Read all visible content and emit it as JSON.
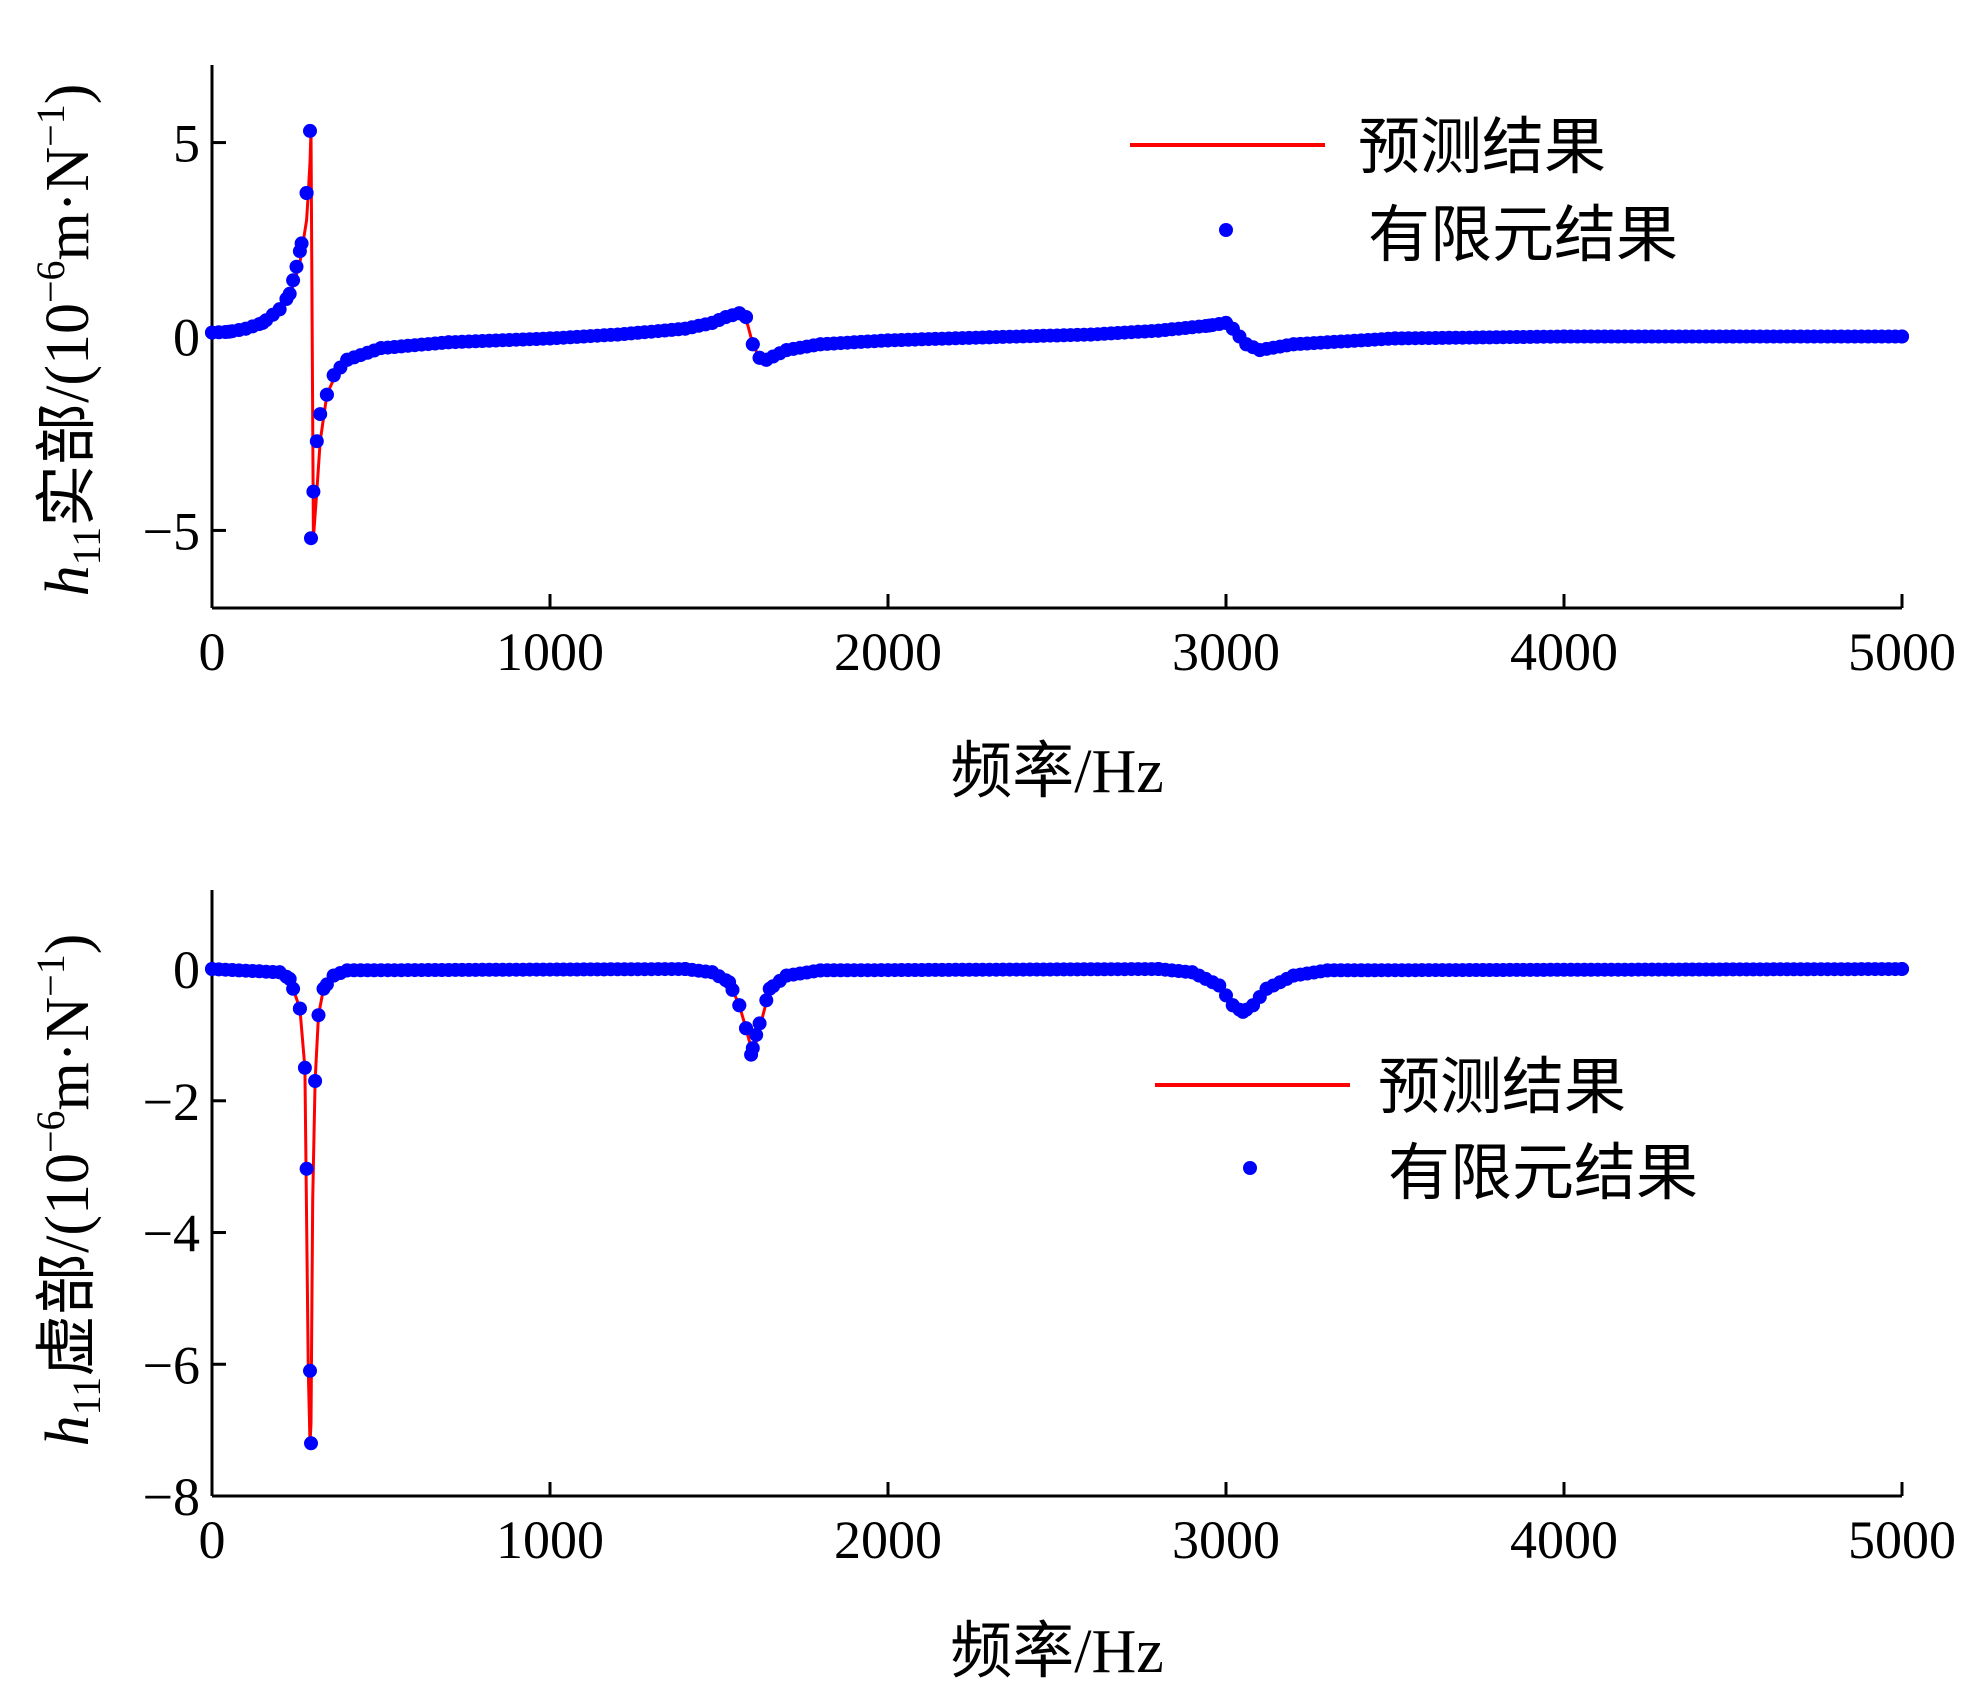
{
  "colors": {
    "predicted": "#ff0000",
    "fem": "#0000ff",
    "axis": "#000000"
  },
  "chart_data": [
    {
      "type": "line",
      "title": "",
      "xlabel": "频率/Hz",
      "ylabel_var": "h",
      "ylabel_sub": "11",
      "ylabel_text": "实部/(10",
      "ylabel_exp1": "−6",
      "ylabel_mid": "m·N",
      "ylabel_exp2": "−1",
      "ylabel_close": ")",
      "xlim": [
        0,
        5000
      ],
      "ylim": [
        -7,
        7
      ],
      "xticks": [
        0,
        1000,
        2000,
        3000,
        4000,
        5000
      ],
      "xtick_labels": [
        "0",
        "1000",
        "2000",
        "3000",
        "4000",
        "5000"
      ],
      "yticks": [
        5,
        0,
        -5
      ],
      "ytick_labels": [
        "5",
        "0",
        "−5"
      ],
      "legend_position": "top-right",
      "series": [
        {
          "name": "预测结果",
          "style": "line",
          "x": [
            0,
            50,
            100,
            150,
            200,
            240,
            260,
            280,
            285,
            290,
            293,
            300,
            310,
            320,
            340,
            370,
            400,
            450,
            500,
            600,
            800,
            1000,
            1200,
            1400,
            1480,
            1520,
            1550,
            1570,
            1585,
            1600,
            1620,
            1640,
            1700,
            1800,
            2000,
            2300,
            2600,
            2800,
            2950,
            3000,
            3020,
            3060,
            3100,
            3200,
            3500,
            4000,
            4500,
            5000
          ],
          "y": [
            0.1,
            0.12,
            0.2,
            0.35,
            0.7,
            1.3,
            1.9,
            3.0,
            3.7,
            4.5,
            5.3,
            -5.2,
            -4.0,
            -2.7,
            -1.5,
            -0.9,
            -0.6,
            -0.4,
            -0.3,
            -0.2,
            -0.1,
            -0.05,
            0.05,
            0.2,
            0.35,
            0.5,
            0.6,
            0.55,
            0.3,
            -0.2,
            -0.55,
            -0.6,
            -0.35,
            -0.2,
            -0.1,
            -0.02,
            0.05,
            0.15,
            0.28,
            0.35,
            0.2,
            -0.2,
            -0.35,
            -0.2,
            -0.05,
            0,
            0,
            0
          ]
        },
        {
          "name": "有限元结果",
          "style": "markers",
          "x": [
            0,
            50,
            100,
            150,
            200,
            230,
            250,
            265,
            280,
            290,
            293,
            300,
            310,
            320,
            340,
            360,
            400,
            500,
            700,
            1000,
            1200,
            1400,
            1480,
            1520,
            1560,
            1580,
            1600,
            1620,
            1640,
            1700,
            1800,
            2000,
            2300,
            2600,
            2800,
            2950,
            3000,
            3020,
            3060,
            3100,
            3200,
            3500,
            4000,
            4500,
            5000
          ],
          "y": [
            0.1,
            0.12,
            0.2,
            0.35,
            0.7,
            1.1,
            1.8,
            2.4,
            3.7,
            5.3,
            -5.2,
            -4.0,
            -2.7,
            -2.0,
            -1.5,
            -1.0,
            -0.6,
            -0.3,
            -0.15,
            -0.05,
            0.05,
            0.2,
            0.35,
            0.5,
            0.6,
            0.5,
            -0.2,
            -0.55,
            -0.6,
            -0.35,
            -0.2,
            -0.1,
            -0.02,
            0.05,
            0.15,
            0.28,
            0.35,
            0.2,
            -0.2,
            -0.35,
            -0.2,
            -0.05,
            0,
            0,
            0
          ]
        }
      ]
    },
    {
      "type": "line",
      "title": "",
      "xlabel": "频率/Hz",
      "ylabel_var": "h",
      "ylabel_sub": "11",
      "ylabel_text": "虚部/(10",
      "ylabel_exp1": "−6",
      "ylabel_mid": "m·N",
      "ylabel_exp2": "−1",
      "ylabel_close": ")",
      "xlim": [
        0,
        5000
      ],
      "ylim": [
        -8,
        1.2
      ],
      "xticks": [
        0,
        1000,
        2000,
        3000,
        4000,
        5000
      ],
      "xtick_labels": [
        "0",
        "1000",
        "2000",
        "3000",
        "4000",
        "5000"
      ],
      "yticks": [
        0,
        -2,
        -4,
        -6,
        -8
      ],
      "ytick_labels": [
        "0",
        "−2",
        "−4",
        "−6",
        "−8"
      ],
      "legend_position": "center-right",
      "series": [
        {
          "name": "预测结果",
          "style": "line",
          "x": [
            0,
            200,
            230,
            260,
            275,
            285,
            290,
            293,
            298,
            305,
            315,
            330,
            360,
            400,
            1400,
            1480,
            1530,
            1560,
            1580,
            1600,
            1620,
            1650,
            1700,
            1800,
            2800,
            2900,
            2980,
            3020,
            3050,
            3080,
            3120,
            3200,
            3300,
            5000
          ],
          "y": [
            0,
            -0.05,
            -0.15,
            -0.6,
            -1.5,
            -6.1,
            -7.2,
            -6.9,
            -3.5,
            -1.7,
            -0.7,
            -0.3,
            -0.1,
            -0.02,
            0,
            -0.05,
            -0.2,
            -0.55,
            -0.9,
            -1.3,
            -0.9,
            -0.3,
            -0.1,
            -0.02,
            0,
            -0.05,
            -0.25,
            -0.55,
            -0.65,
            -0.55,
            -0.3,
            -0.1,
            -0.02,
            0
          ]
        },
        {
          "name": "有限元结果",
          "style": "markers",
          "x": [
            0,
            200,
            230,
            260,
            275,
            290,
            293,
            305,
            315,
            330,
            360,
            400,
            1400,
            1480,
            1530,
            1560,
            1580,
            1595,
            1610,
            1650,
            1700,
            1800,
            2800,
            2900,
            2980,
            3020,
            3050,
            3080,
            3120,
            3200,
            3300,
            5000
          ],
          "y": [
            0,
            -0.05,
            -0.15,
            -0.6,
            -1.5,
            -6.1,
            -7.2,
            -1.7,
            -0.7,
            -0.3,
            -0.1,
            -0.02,
            0,
            -0.05,
            -0.2,
            -0.55,
            -0.9,
            -1.3,
            -1.0,
            -0.3,
            -0.1,
            -0.02,
            0,
            -0.05,
            -0.25,
            -0.55,
            -0.65,
            -0.55,
            -0.3,
            -0.1,
            -0.02,
            0
          ]
        }
      ]
    }
  ]
}
